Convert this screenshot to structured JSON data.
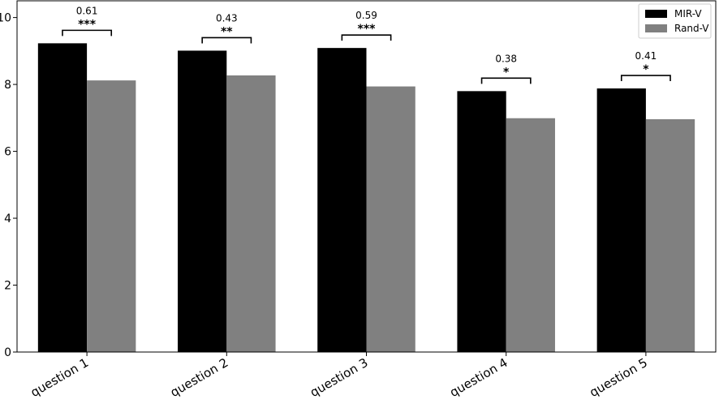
{
  "chart_data": {
    "type": "bar",
    "categories": [
      "question 1",
      "question 2",
      "question 3",
      "question 4",
      "question 5"
    ],
    "series": [
      {
        "name": "MIR-V",
        "color": "#000000",
        "values": [
          9.23,
          9.01,
          9.09,
          7.8,
          7.88
        ]
      },
      {
        "name": "Rand-V",
        "color": "#808080",
        "values": [
          8.12,
          8.27,
          7.94,
          6.99,
          6.96
        ]
      }
    ],
    "annotations": [
      {
        "effect": "0.61",
        "significance": "***"
      },
      {
        "effect": "0.43",
        "significance": "**"
      },
      {
        "effect": "0.59",
        "significance": "***"
      },
      {
        "effect": "0.38",
        "significance": "*"
      },
      {
        "effect": "0.41",
        "significance": "*"
      }
    ],
    "ylim": [
      0,
      10.5
    ],
    "yticks": [
      0,
      2,
      4,
      6,
      8,
      10
    ],
    "xlabel": "",
    "ylabel": "",
    "grid": false,
    "legend_position": "top-right"
  }
}
